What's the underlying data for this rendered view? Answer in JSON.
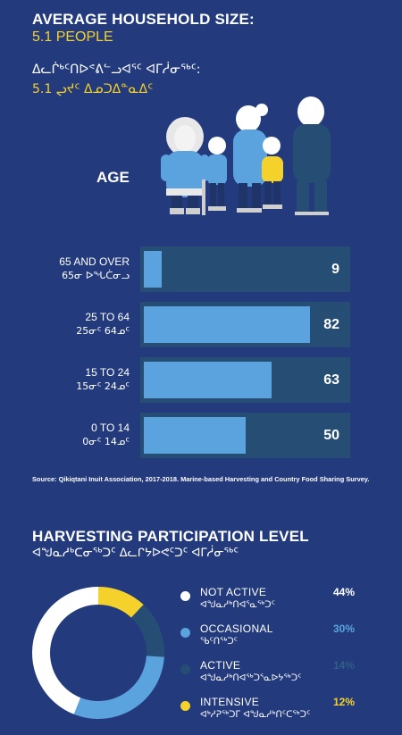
{
  "header": {
    "title": "AVERAGE HOUSEHOLD SIZE:",
    "subtitle": "5.1 PEOPLE",
    "title_syllabics": "ᐃᓚᒌᒃᑦᑎᐅᕝᕕᓪᓗᐊᕐᑦ ᐊᒥᓲᓂᖅᑦ:",
    "subtitle_syllabics": "5.1 ᖢᔪᑦ ᐃᓄᑐᐃᓐᓇᐃᑦ"
  },
  "age_section": {
    "label": "AGE"
  },
  "chart_data": {
    "type": "bar",
    "orientation": "horizontal",
    "title": "",
    "categories": [
      {
        "label": "65 AND OVER",
        "syllabics": "65ᓂ ᐅᖓᑖᓂᓗ"
      },
      {
        "label": "25 TO 64",
        "syllabics": "25ᓂᑦ 64ᓄᑦ"
      },
      {
        "label": "15 TO 24",
        "syllabics": "15ᓂᑦ 24ᓄᑦ"
      },
      {
        "label": "0 TO 14",
        "syllabics": "0ᓂᑦ 14ᓄᑦ"
      }
    ],
    "values": [
      9,
      82,
      63,
      50
    ],
    "xlim": [
      0,
      100
    ],
    "bar_color": "#5ba3de",
    "track_color": "#264e75"
  },
  "source": "Source: Qikiqtani Inuit Association, 2017-2018. Marine-based Harvesting and Country Food Sharing Survey.",
  "participation": {
    "title": "HARVESTING PARTICIPATION LEVEL",
    "title_syllabics": "ᐊᖑᓇᓱᒃᑕᓂᖅᑐᑦ ᐃᓚᒋᔭᐅᕙᑦᑐᑦ ᐊᒥᓲᓂᖅᑦ",
    "chart_data": {
      "type": "pie",
      "donut": true,
      "slices": [
        {
          "name": "NOT ACTIVE",
          "syllabics": "ᐊᖑᓇᓱᒃᑎᐊᕐᓇᖅᑐᑦ",
          "value": 44,
          "label": "44%",
          "color": "#ffffff"
        },
        {
          "name": "OCCASIONAL",
          "syllabics": "ᖃᑦᑎᖅᑐᑦ",
          "value": 30,
          "label": "30%",
          "color": "#5ba3de"
        },
        {
          "name": "ACTIVE",
          "syllabics": "ᐊᖑᓇᓱᒃᑎᐊᖅᑐᕐᓇᐅᔭᖅᑐᑦ",
          "value": 14,
          "label": "14%",
          "color": "#264e75"
        },
        {
          "name": "INTENSIVE",
          "syllabics": "ᐊᒃᓱᕈᖅᑐᒥ ᐊᖑᓇᓱᒃᑎᑦᑕᖅᑐᑦ",
          "value": 12,
          "label": "12%",
          "color": "#f5d22b"
        }
      ]
    }
  }
}
